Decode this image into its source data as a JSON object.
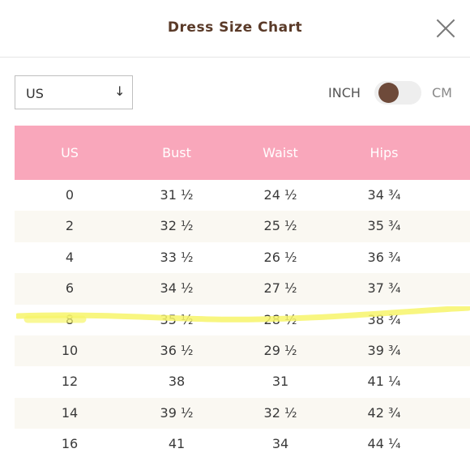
{
  "header": {
    "title": "Dress Size Chart"
  },
  "controls": {
    "region_select": {
      "value": "US"
    },
    "unit_toggle": {
      "left_label": "INCH",
      "right_label": "CM",
      "selected": "INCH"
    }
  },
  "table": {
    "headers": [
      "US",
      "Bust",
      "Waist",
      "Hips"
    ],
    "rows": [
      [
        "0",
        "31 ½",
        "24 ½",
        "34 ¾"
      ],
      [
        "2",
        "32 ½",
        "25 ½",
        "35 ¾"
      ],
      [
        "4",
        "33 ½",
        "26 ½",
        "36 ¾"
      ],
      [
        "6",
        "34 ½",
        "27 ½",
        "37 ¾"
      ],
      [
        "8",
        "35 ½",
        "28 ½",
        "38 ¾"
      ],
      [
        "10",
        "36 ½",
        "29 ½",
        "39 ¾"
      ],
      [
        "12",
        "38",
        "31",
        "41 ¼"
      ],
      [
        "14",
        "39 ½",
        "32 ½",
        "42 ¾"
      ],
      [
        "16",
        "41",
        "34",
        "44 ¼"
      ]
    ]
  },
  "colors": {
    "header_pink": "#f9a7bb",
    "title_brown": "#5a3a28",
    "toggle_knob": "#6e4a3a",
    "highlight_yellow": "#f7f56a",
    "alt_row": "#faf8f2"
  },
  "icons": {
    "close": "close-icon",
    "select_arrow": "arrow-down-icon"
  }
}
